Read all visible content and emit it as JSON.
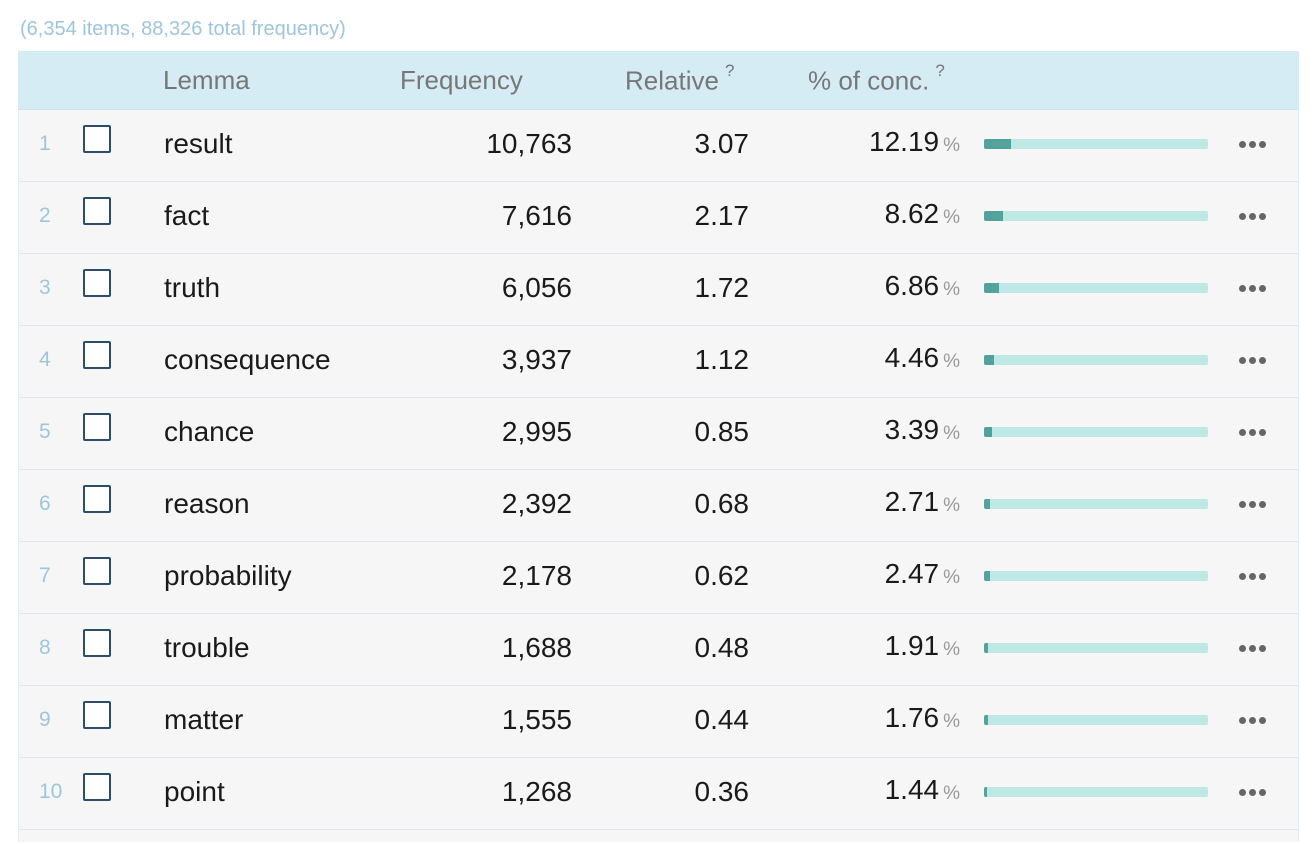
{
  "summary": "(6,354 items, 88,326 total frequency)",
  "headers": {
    "lemma": "Lemma",
    "frequency": "Frequency",
    "relative": "Relative",
    "relative_help": "?",
    "conc": "% of conc.",
    "conc_help": "?"
  },
  "percent_unit": "%",
  "rows": [
    {
      "n": "1",
      "lemma": "result",
      "frequency": "10,763",
      "relative": "3.07",
      "pct": "12.19",
      "fraction": 0.1219
    },
    {
      "n": "2",
      "lemma": "fact",
      "frequency": "7,616",
      "relative": "2.17",
      "pct": "8.62",
      "fraction": 0.0862
    },
    {
      "n": "3",
      "lemma": "truth",
      "frequency": "6,056",
      "relative": "1.72",
      "pct": "6.86",
      "fraction": 0.0686
    },
    {
      "n": "4",
      "lemma": "consequence",
      "frequency": "3,937",
      "relative": "1.12",
      "pct": "4.46",
      "fraction": 0.0446
    },
    {
      "n": "5",
      "lemma": "chance",
      "frequency": "2,995",
      "relative": "0.85",
      "pct": "3.39",
      "fraction": 0.0339
    },
    {
      "n": "6",
      "lemma": "reason",
      "frequency": "2,392",
      "relative": "0.68",
      "pct": "2.71",
      "fraction": 0.0271
    },
    {
      "n": "7",
      "lemma": "probability",
      "frequency": "2,178",
      "relative": "0.62",
      "pct": "2.47",
      "fraction": 0.0247
    },
    {
      "n": "8",
      "lemma": "trouble",
      "frequency": "1,688",
      "relative": "0.48",
      "pct": "1.91",
      "fraction": 0.0191
    },
    {
      "n": "9",
      "lemma": "matter",
      "frequency": "1,555",
      "relative": "0.44",
      "pct": "1.76",
      "fraction": 0.0176
    },
    {
      "n": "10",
      "lemma": "point",
      "frequency": "1,268",
      "relative": "0.36",
      "pct": "1.44",
      "fraction": 0.0144
    }
  ],
  "colors": {
    "header_bg": "#d6ecf4",
    "bar_track": "#bde8e4",
    "bar_fill": "#52a39c",
    "checkbox_border": "#2b4e6b",
    "row_number": "#9dc6dd"
  },
  "icons": {
    "row_menu": "more-horizontal-icon"
  }
}
